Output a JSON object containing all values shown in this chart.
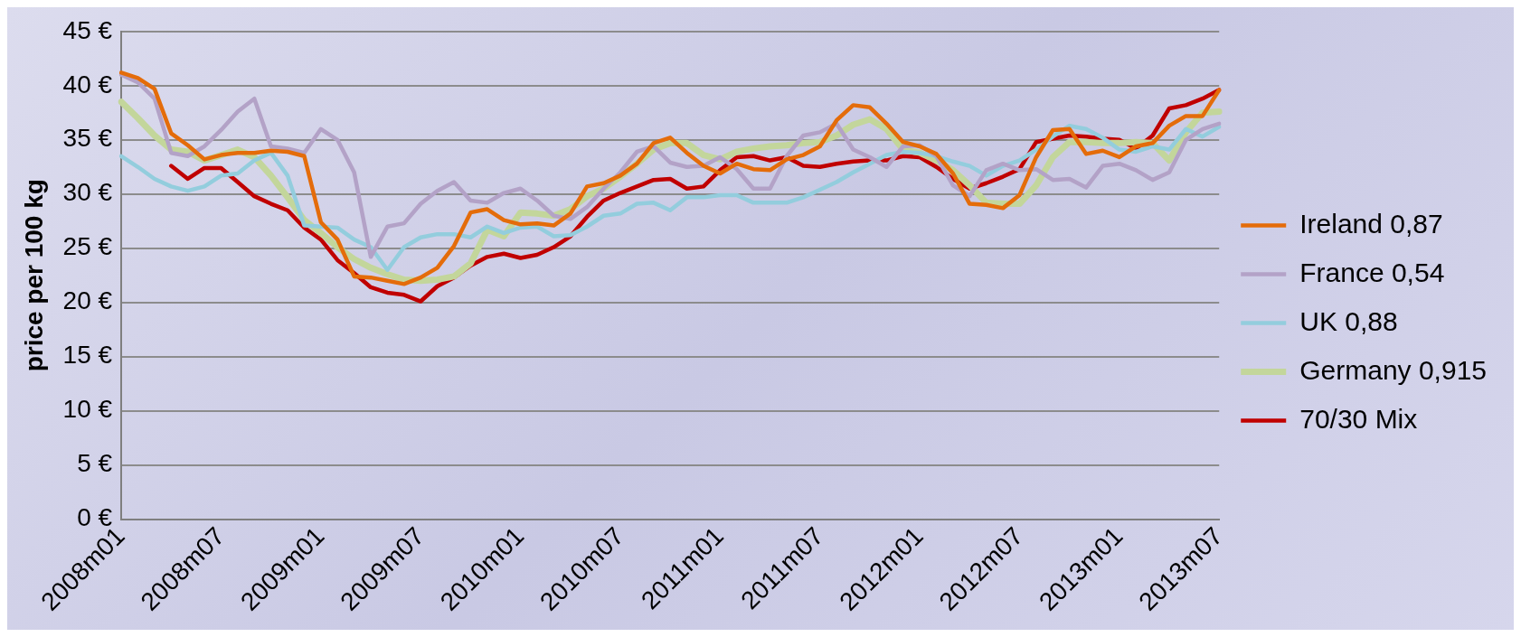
{
  "chart_data": {
    "type": "line",
    "ylabel": "price per 100 kg",
    "categories": [
      "2008m01",
      null,
      null,
      null,
      null,
      null,
      "2008m07",
      null,
      null,
      null,
      null,
      null,
      "2009m01",
      null,
      null,
      null,
      null,
      null,
      "2009m07",
      null,
      null,
      null,
      null,
      null,
      "2010m01",
      null,
      null,
      null,
      null,
      null,
      "2010m07",
      null,
      null,
      null,
      null,
      null,
      "2011m01",
      null,
      null,
      null,
      null,
      null,
      "2011m07",
      null,
      null,
      null,
      null,
      null,
      "2012m01",
      null,
      null,
      null,
      null,
      null,
      "2012m07",
      null,
      null,
      null,
      null,
      null,
      "2013m01",
      null,
      null,
      null,
      null,
      null,
      "2013m07"
    ],
    "series": [
      {
        "name": "Ireland 0,87",
        "color": "#e46c0a",
        "values": [
          41.2,
          40.7,
          39.7,
          35.6,
          34.5,
          33.2,
          33.6,
          33.8,
          33.8,
          34.0,
          33.9,
          33.5,
          27.4,
          25.8,
          22.4,
          22.3,
          22.0,
          21.7,
          22.3,
          23.2,
          25.2,
          28.3,
          28.6,
          27.6,
          27.2,
          27.3,
          27.1,
          28.2,
          30.7,
          31.0,
          31.7,
          32.8,
          34.7,
          35.2,
          33.8,
          32.6,
          31.9,
          32.8,
          32.3,
          32.2,
          33.2,
          33.6,
          34.4,
          36.8,
          38.2,
          38.0,
          36.5,
          34.8,
          34.4,
          33.7,
          31.9,
          29.1,
          29.0,
          28.7,
          29.9,
          33.4,
          35.9,
          36.0,
          33.7,
          34.0,
          33.4,
          34.4,
          34.7,
          36.3,
          37.2,
          37.2,
          39.6
        ]
      },
      {
        "name": "France 0,54",
        "color": "#b3a2c7",
        "values": [
          41.0,
          40.3,
          38.8,
          33.8,
          33.5,
          34.4,
          35.9,
          37.6,
          38.8,
          34.4,
          34.2,
          33.8,
          36.0,
          35.0,
          32.0,
          24.2,
          27.0,
          27.3,
          29.1,
          30.3,
          31.1,
          29.4,
          29.2,
          30.1,
          30.5,
          29.4,
          28.0,
          27.7,
          28.8,
          30.5,
          32.0,
          33.9,
          34.4,
          32.9,
          32.5,
          32.6,
          33.4,
          32.3,
          30.5,
          30.5,
          33.5,
          35.4,
          35.7,
          36.5,
          34.1,
          33.4,
          32.5,
          34.4,
          34.5,
          33.5,
          30.8,
          29.8,
          32.2,
          32.8,
          32.2,
          32.3,
          31.3,
          31.4,
          30.6,
          32.6,
          32.8,
          32.2,
          31.3,
          32.0,
          35.0,
          36.0,
          36.5
        ]
      },
      {
        "name": "UK 0,88",
        "color": "#93cddd",
        "values": [
          33.5,
          32.5,
          31.4,
          30.7,
          30.3,
          30.7,
          31.7,
          31.9,
          33.1,
          33.8,
          31.7,
          27.1,
          27.0,
          26.9,
          25.8,
          25.1,
          23.0,
          25.1,
          26.0,
          26.3,
          26.3,
          26.0,
          27.0,
          26.4,
          26.9,
          27.0,
          26.1,
          26.2,
          27.0,
          28.0,
          28.2,
          29.1,
          29.2,
          28.5,
          29.7,
          29.7,
          29.9,
          29.9,
          29.2,
          29.2,
          29.2,
          29.7,
          30.4,
          31.1,
          32.0,
          32.8,
          33.6,
          33.9,
          33.8,
          33.5,
          33.0,
          32.6,
          31.7,
          32.6,
          33.1,
          34.1,
          35.3,
          36.3,
          36.0,
          35.2,
          34.1,
          33.9,
          34.4,
          34.1,
          36.0,
          35.3,
          36.2
        ]
      },
      {
        "name": "Germany 0,915",
        "color": "#c3d69b",
        "values": [
          38.5,
          37.0,
          35.4,
          34.1,
          33.9,
          33.1,
          33.6,
          34.1,
          33.4,
          31.7,
          29.7,
          27.6,
          26.4,
          25.1,
          24.0,
          23.2,
          22.6,
          22.1,
          22.0,
          22.1,
          22.4,
          23.6,
          26.7,
          26.1,
          28.3,
          28.2,
          28.0,
          28.6,
          29.8,
          30.5,
          31.6,
          32.8,
          34.1,
          34.7,
          34.7,
          33.6,
          33.2,
          33.9,
          34.2,
          34.4,
          34.5,
          34.7,
          34.8,
          35.4,
          36.4,
          36.9,
          36.0,
          34.1,
          33.8,
          33.1,
          32.2,
          30.8,
          29.2,
          29.1,
          29.1,
          30.8,
          33.4,
          34.8,
          34.8,
          34.7,
          34.7,
          34.8,
          34.7,
          33.1,
          35.7,
          37.5,
          37.6
        ]
      },
      {
        "name": "70/30 Mix",
        "color": "#c00000",
        "values": [
          null,
          null,
          null,
          32.6,
          31.4,
          32.4,
          32.4,
          31.1,
          29.8,
          29.1,
          28.5,
          26.9,
          25.8,
          23.9,
          22.7,
          21.4,
          20.9,
          20.7,
          20.1,
          21.5,
          22.3,
          23.4,
          24.2,
          24.5,
          24.1,
          24.4,
          25.1,
          26.1,
          27.9,
          29.4,
          30.1,
          30.7,
          31.3,
          31.4,
          30.5,
          30.7,
          32.2,
          33.4,
          33.5,
          33.1,
          33.4,
          32.6,
          32.5,
          32.8,
          33.0,
          33.1,
          33.1,
          33.5,
          33.4,
          32.5,
          31.4,
          30.5,
          31.0,
          31.6,
          32.3,
          34.8,
          35.1,
          35.4,
          35.3,
          35.1,
          35.0,
          34.2,
          35.4,
          37.9,
          38.2,
          38.8,
          39.6
        ]
      }
    ],
    "ylim": [
      0,
      45
    ],
    "yticks": [
      {
        "value": 0,
        "label": "0 €"
      },
      {
        "value": 5,
        "label": "5 €"
      },
      {
        "value": 10,
        "label": "10 €"
      },
      {
        "value": 15,
        "label": "15 €"
      },
      {
        "value": 20,
        "label": "20 €"
      },
      {
        "value": 25,
        "label": "25 €"
      },
      {
        "value": 30,
        "label": "30 €"
      },
      {
        "value": 35,
        "label": "35 €"
      },
      {
        "value": 40,
        "label": "40 €"
      },
      {
        "value": 45,
        "label": "45 €"
      }
    ],
    "grid": "y",
    "legend": "right",
    "marker": "none",
    "line_style": "solid"
  }
}
